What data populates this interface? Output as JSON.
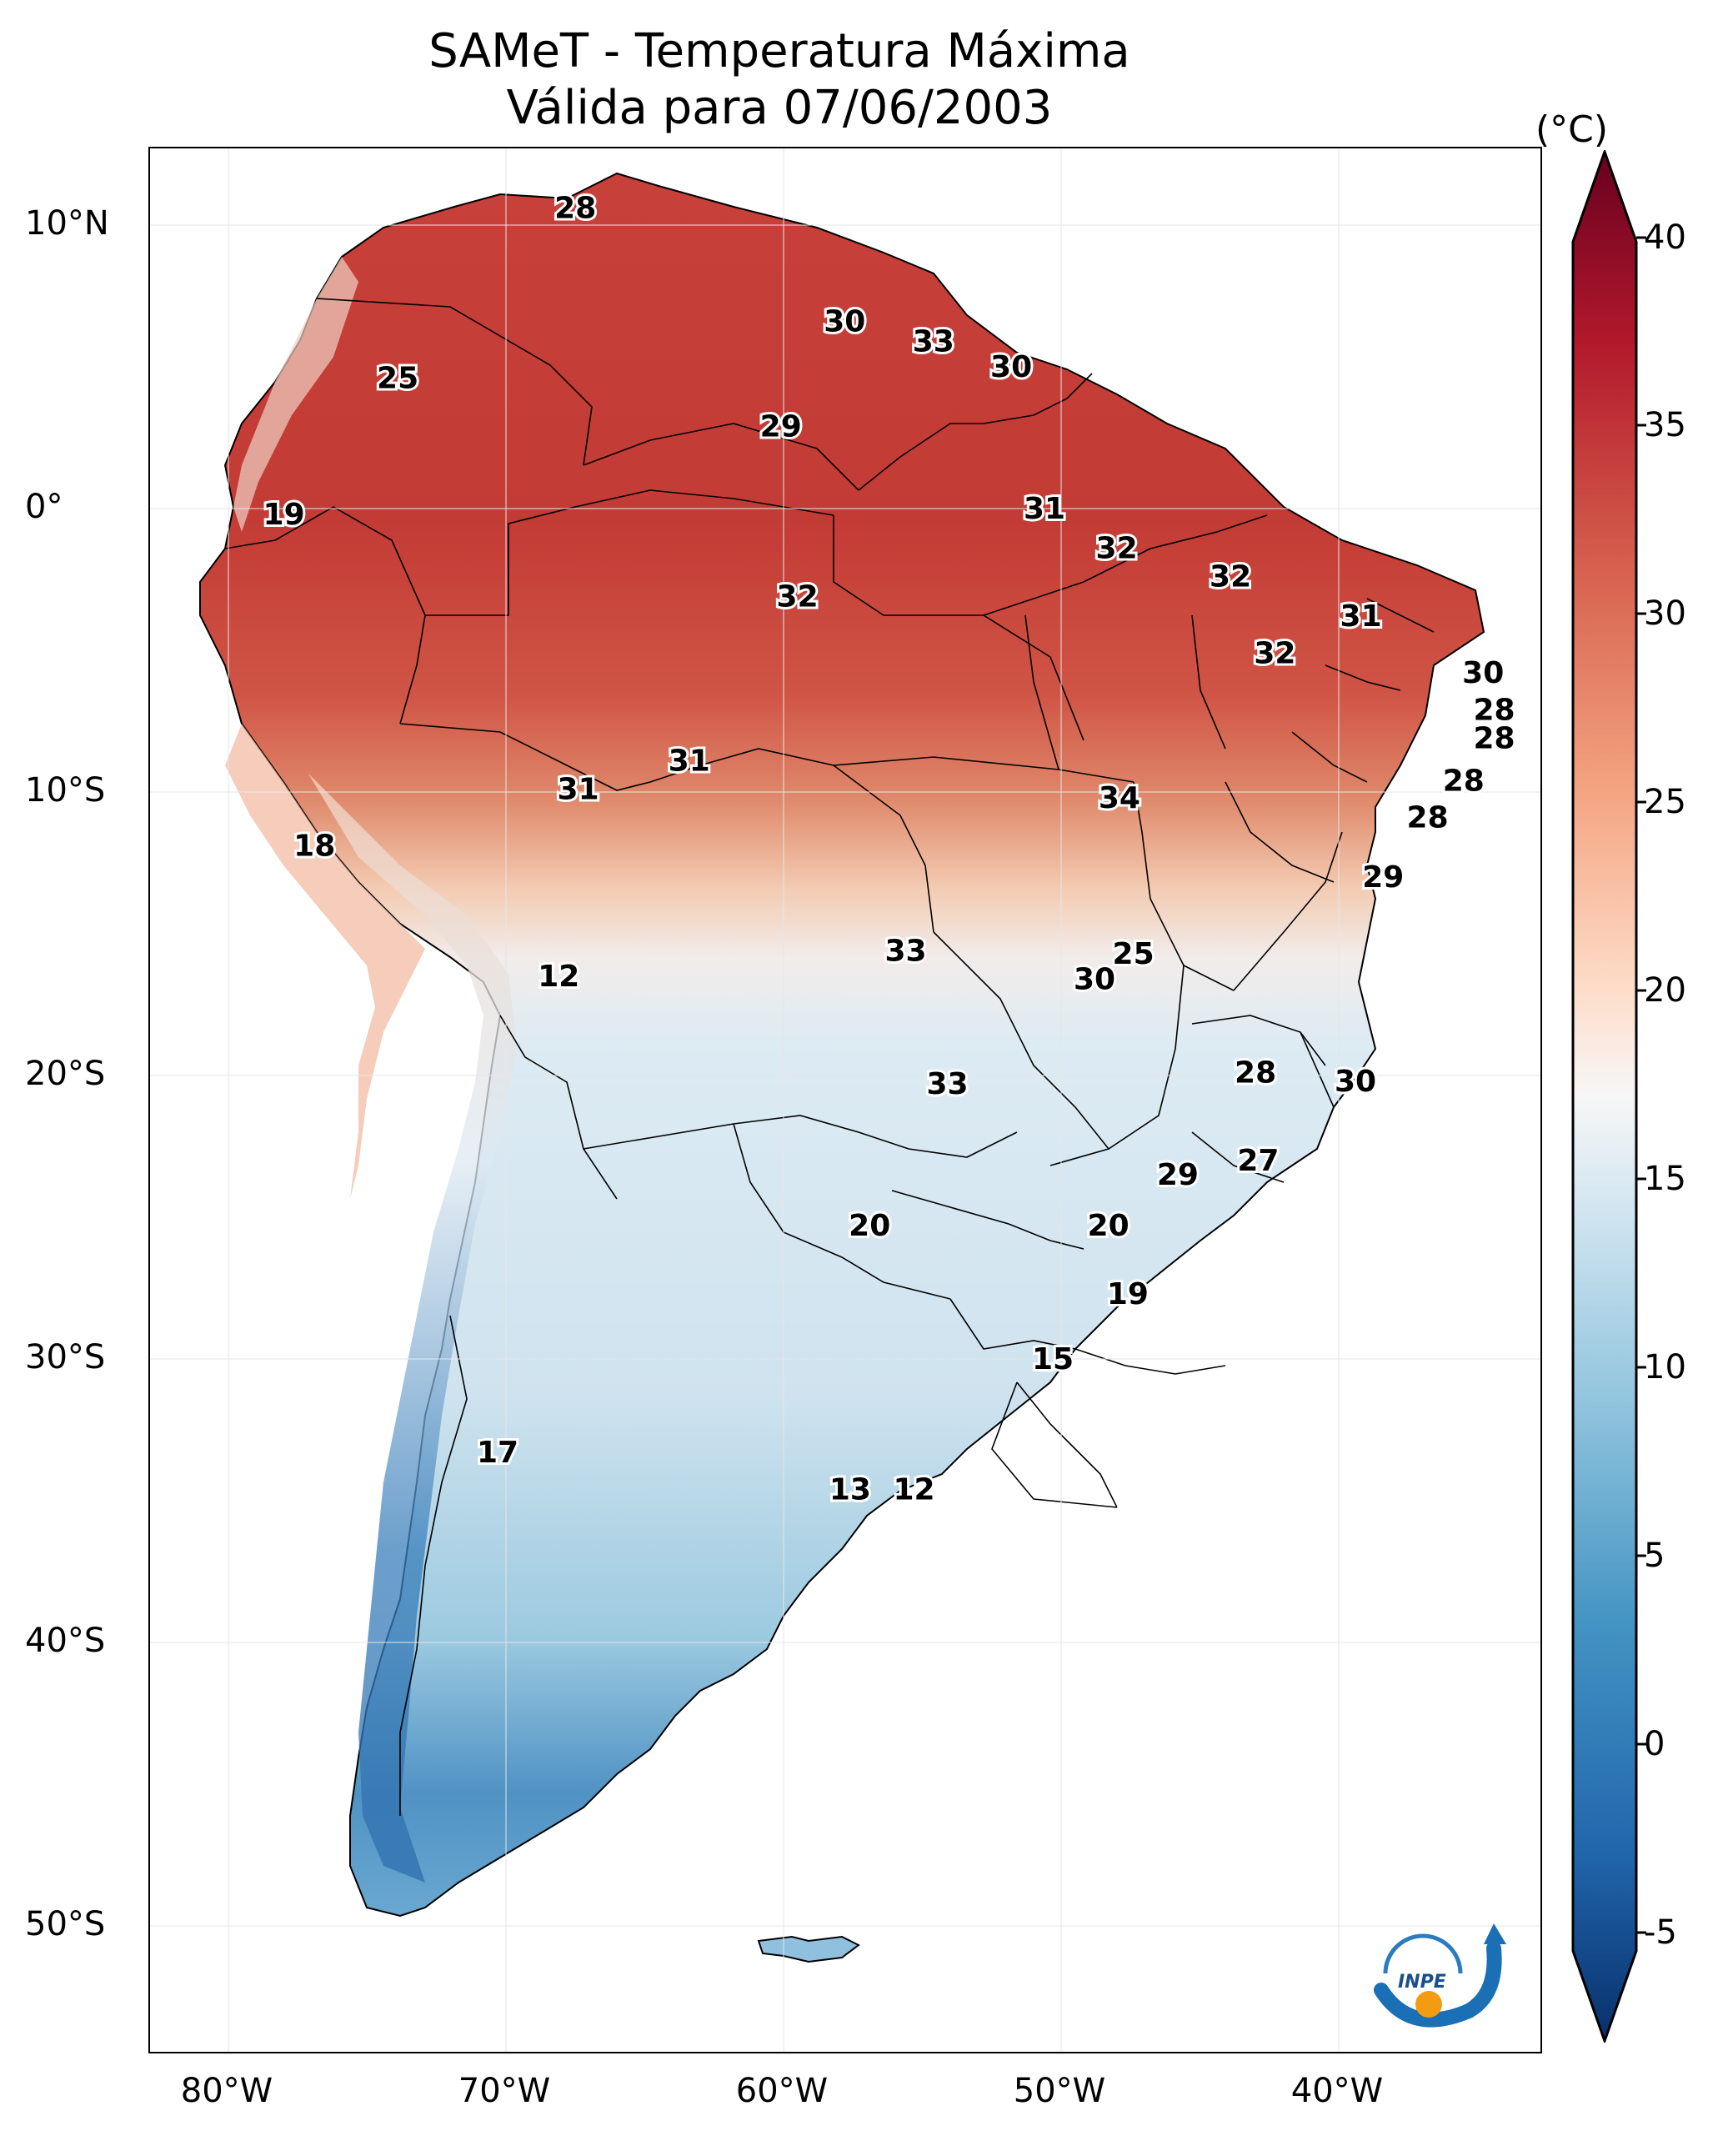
{
  "title": {
    "line1": "SAMeT - Temperatura Máxima",
    "line2": "Válida para 07/06/2003"
  },
  "axes": {
    "lat_ticks": [
      "10°N",
      "0°",
      "10°S",
      "20°S",
      "30°S",
      "40°S",
      "50°S"
    ],
    "lon_ticks": [
      "80°W",
      "70°W",
      "60°W",
      "50°W",
      "40°W"
    ]
  },
  "colorbar": {
    "unit": "(°C)",
    "min": -7,
    "max": 42,
    "ticks": [
      "40",
      "35",
      "30",
      "25",
      "20",
      "15",
      "10",
      "5",
      "0",
      "-5"
    ],
    "colors": [
      "#08306b",
      "#2166ac",
      "#4393c3",
      "#92c5de",
      "#d1e5f0",
      "#f7f7f7",
      "#fddbc7",
      "#f4a582",
      "#d6604d",
      "#b2182b",
      "#67001f"
    ]
  },
  "point_labels": [
    {
      "text": "28",
      "lon": -67.5,
      "lat": 10.6
    },
    {
      "text": "30",
      "lon": -57.8,
      "lat": 6.6
    },
    {
      "text": "33",
      "lon": -54.6,
      "lat": 5.9
    },
    {
      "text": "30",
      "lon": -51.8,
      "lat": 5.0
    },
    {
      "text": "25",
      "lon": -73.9,
      "lat": 4.6
    },
    {
      "text": "29",
      "lon": -60.1,
      "lat": 2.9
    },
    {
      "text": "19",
      "lon": -78.0,
      "lat": -0.2
    },
    {
      "text": "31",
      "lon": -50.6,
      "lat": 0.0
    },
    {
      "text": "32",
      "lon": -48.0,
      "lat": -1.4
    },
    {
      "text": "32",
      "lon": -43.9,
      "lat": -2.4
    },
    {
      "text": "32",
      "lon": -59.5,
      "lat": -3.1
    },
    {
      "text": "31",
      "lon": -39.2,
      "lat": -3.8
    },
    {
      "text": "32",
      "lon": -42.3,
      "lat": -5.1
    },
    {
      "text": "30",
      "lon": -34.8,
      "lat": -5.8
    },
    {
      "text": "28",
      "lon": -34.4,
      "lat": -7.1
    },
    {
      "text": "28",
      "lon": -34.4,
      "lat": -8.1
    },
    {
      "text": "31",
      "lon": -63.4,
      "lat": -8.9
    },
    {
      "text": "31",
      "lon": -67.4,
      "lat": -9.9
    },
    {
      "text": "34",
      "lon": -47.9,
      "lat": -10.2
    },
    {
      "text": "28",
      "lon": -35.5,
      "lat": -9.6
    },
    {
      "text": "28",
      "lon": -36.8,
      "lat": -10.9
    },
    {
      "text": "18",
      "lon": -76.9,
      "lat": -11.9
    },
    {
      "text": "29",
      "lon": -38.4,
      "lat": -13.0
    },
    {
      "text": "33",
      "lon": -55.6,
      "lat": -15.6
    },
    {
      "text": "25",
      "lon": -47.4,
      "lat": -15.7
    },
    {
      "text": "30",
      "lon": -48.8,
      "lat": -16.6
    },
    {
      "text": "12",
      "lon": -68.1,
      "lat": -16.5
    },
    {
      "text": "28",
      "lon": -43.0,
      "lat": -19.9
    },
    {
      "text": "30",
      "lon": -39.4,
      "lat": -20.2
    },
    {
      "text": "33",
      "lon": -54.1,
      "lat": -20.3
    },
    {
      "text": "27",
      "lon": -42.9,
      "lat": -23.0
    },
    {
      "text": "29",
      "lon": -45.8,
      "lat": -23.5
    },
    {
      "text": "20",
      "lon": -56.9,
      "lat": -25.3
    },
    {
      "text": "20",
      "lon": -48.3,
      "lat": -25.3
    },
    {
      "text": "19",
      "lon": -47.6,
      "lat": -27.7
    },
    {
      "text": "15",
      "lon": -50.3,
      "lat": -30.0
    },
    {
      "text": "17",
      "lon": -70.3,
      "lat": -33.3
    },
    {
      "text": "13",
      "lon": -57.6,
      "lat": -34.6
    },
    {
      "text": "12",
      "lon": -55.3,
      "lat": -34.6
    }
  ],
  "logo": {
    "text": "INPE"
  }
}
